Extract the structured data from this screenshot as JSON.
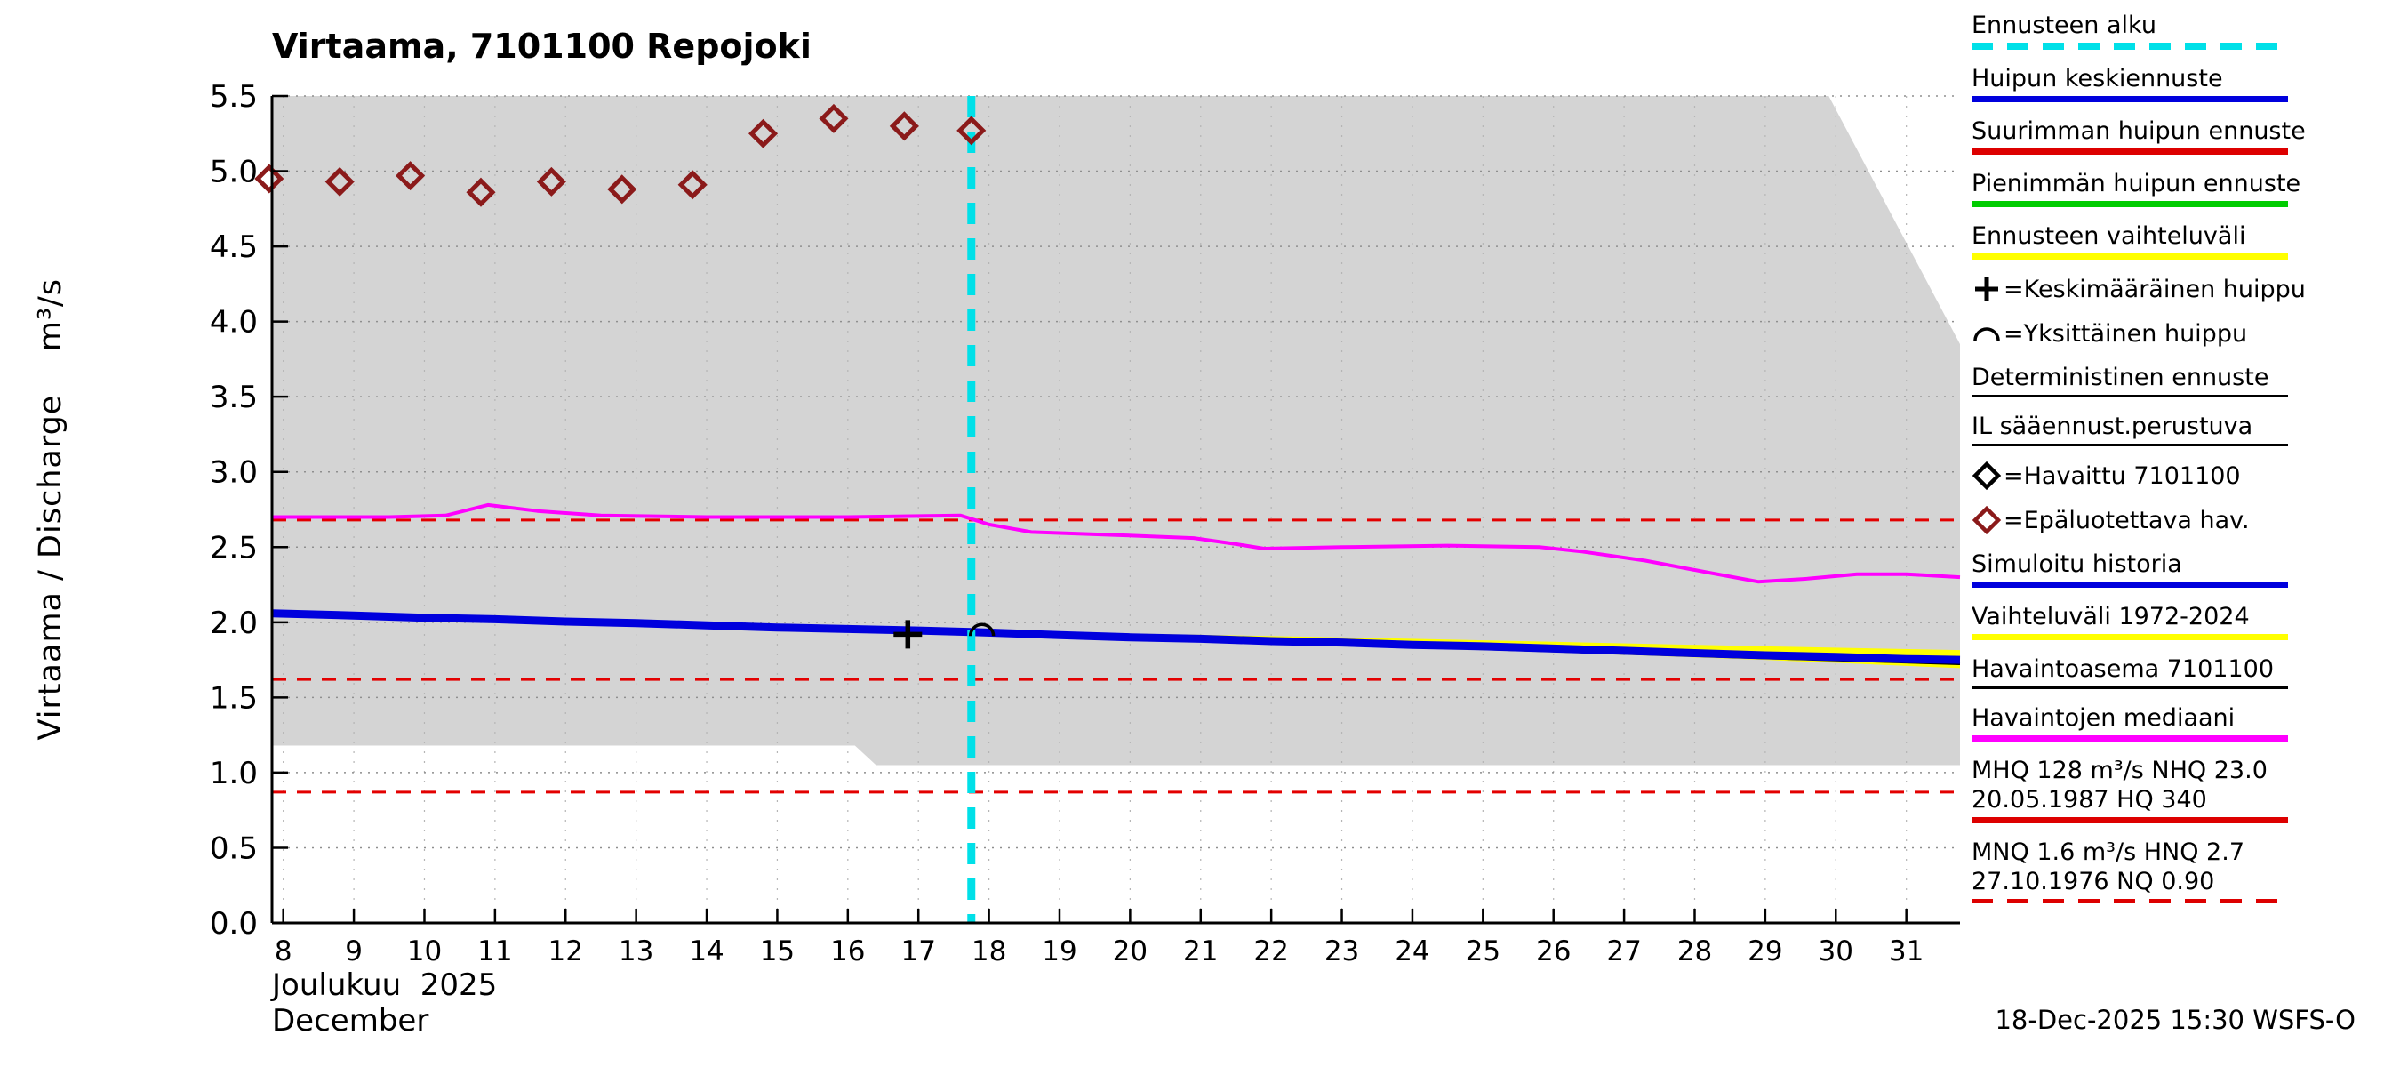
{
  "title": "Virtaama, 7101100 Repojoki",
  "footer": {
    "timestamp": "18-Dec-2025 15:30 WSFS-O"
  },
  "y_axis": {
    "label": "Virtaama / Discharge    m³/s",
    "tick_values": [
      0,
      0.5,
      1,
      1.5,
      2,
      2.5,
      3,
      3.5,
      4,
      4.5,
      5,
      5.5
    ],
    "tick_labels": [
      "0.0",
      "0.5",
      "1.0",
      "1.5",
      "2.0",
      "2.5",
      "3.0",
      "3.5",
      "4.0",
      "4.5",
      "5.0",
      "5.5"
    ]
  },
  "x_axis": {
    "tick_values": [
      8,
      9,
      10,
      11,
      12,
      13,
      14,
      15,
      16,
      17,
      18,
      19,
      20,
      21,
      22,
      23,
      24,
      25,
      26,
      27,
      28,
      29,
      30,
      31
    ],
    "tick_labels": [
      "8",
      "9",
      "10",
      "11",
      "12",
      "13",
      "14",
      "15",
      "16",
      "17",
      "18",
      "19",
      "20",
      "21",
      "22",
      "23",
      "24",
      "25",
      "26",
      "27",
      "28",
      "29",
      "30",
      "31"
    ],
    "month_fi": "Joulukuu  2025",
    "month_en": "December"
  },
  "colors": {
    "cyan": "#00E0E8",
    "blue": "#0000DD",
    "red": "#DD0000",
    "green": "#00CC00",
    "yellow": "#FFFF00",
    "magenta": "#FF00FF",
    "black": "#000000",
    "dark_red": "#8B1A1A",
    "range_gray": "#D4D4D4",
    "grid": "#8F8F8F",
    "grid_light": "#B5B5B5",
    "ref_red": "#E30000"
  },
  "chart_data": {
    "type": "line",
    "x_unit": "day of December 2025",
    "y_unit": "m³/s",
    "x_range": [
      7.84,
      31.76
    ],
    "y_range": [
      0,
      5.5
    ],
    "y_gridlines": [
      0.5,
      1.0,
      1.5,
      2.0,
      2.5,
      3.0,
      3.5,
      4.0,
      4.5,
      5.0,
      5.5
    ],
    "forecast_start_day": 17.75,
    "reference_levels": [
      2.68,
      1.62,
      0.87
    ],
    "historical_range": {
      "label": "Vaihteluväli 1972-2024",
      "upper": {
        "x": [
          7.84,
          29.9,
          31.76
        ],
        "y": [
          5.5,
          5.5,
          3.85
        ]
      },
      "lower": {
        "x": [
          7.84,
          16.1,
          16.4,
          31.76
        ],
        "y": [
          1.18,
          1.18,
          1.05,
          1.05
        ]
      }
    },
    "forecast_band": {
      "label": "Ennusteen vaihteluväli",
      "color_key": "yellow",
      "upper": {
        "x": [
          17.75,
          20,
          23,
          26,
          29,
          31.76
        ],
        "y": [
          1.95,
          1.925,
          1.9,
          1.87,
          1.84,
          1.815
        ]
      },
      "lower": {
        "x": [
          17.75,
          20,
          23,
          26,
          29,
          31.76
        ],
        "y": [
          1.92,
          1.885,
          1.845,
          1.8,
          1.75,
          1.695
        ]
      }
    },
    "series": [
      {
        "key": "median",
        "name": "Havaintojen mediaani",
        "color_key": "magenta",
        "width": 4,
        "x": [
          7.84,
          9.5,
          10.3,
          10.9,
          11.6,
          12.5,
          14,
          16,
          17.6,
          18,
          18.6,
          19.8,
          20.9,
          21.5,
          21.9,
          23,
          24.5,
          25.8,
          26.4,
          27.3,
          28.2,
          28.9,
          29.6,
          30.3,
          31,
          31.76
        ],
        "y": [
          2.7,
          2.7,
          2.71,
          2.78,
          2.74,
          2.71,
          2.7,
          2.7,
          2.71,
          2.65,
          2.6,
          2.58,
          2.56,
          2.52,
          2.49,
          2.5,
          2.51,
          2.5,
          2.47,
          2.41,
          2.33,
          2.27,
          2.29,
          2.32,
          2.32,
          2.3
        ]
      },
      {
        "key": "deterministic",
        "name": "Deterministinen ennuste",
        "color_key": "black",
        "width": 3.5,
        "x": [
          17.75,
          20,
          23,
          26,
          29,
          31.76
        ],
        "y": [
          1.93,
          1.895,
          1.855,
          1.81,
          1.765,
          1.725
        ]
      },
      {
        "key": "simulated-history",
        "name": "Simuloitu historia",
        "color_key": "blue",
        "width": 9,
        "x": [
          7.84,
          9,
          10,
          11,
          12,
          13,
          14,
          15,
          16,
          17,
          17.75
        ],
        "y": [
          2.06,
          2.045,
          2.03,
          2.02,
          2.005,
          1.995,
          1.98,
          1.965,
          1.955,
          1.945,
          1.935
        ]
      },
      {
        "key": "forecast-mean",
        "name": "Huipun keskiennuste",
        "color_key": "blue",
        "width": 9,
        "x": [
          17.75,
          19,
          20,
          21,
          22,
          23,
          24,
          25,
          26,
          27,
          28,
          29,
          30,
          31,
          31.76
        ],
        "y": [
          1.935,
          1.915,
          1.9,
          1.89,
          1.875,
          1.865,
          1.85,
          1.84,
          1.825,
          1.81,
          1.795,
          1.78,
          1.77,
          1.755,
          1.75
        ]
      }
    ],
    "observations_unreliable": {
      "label": "Epäluotettava hav.",
      "marker": "diamond",
      "color_key": "dark_red",
      "x": [
        7.8,
        8.8,
        9.8,
        10.8,
        11.8,
        12.8,
        13.8,
        14.8,
        15.8,
        16.8,
        17.75
      ],
      "y": [
        4.95,
        4.93,
        4.97,
        4.86,
        4.93,
        4.88,
        4.91,
        5.25,
        5.35,
        5.3,
        5.27
      ]
    },
    "markers": [
      {
        "type": "plus",
        "label": "Keskimääräinen huippu",
        "x": 16.85,
        "y": 1.92
      },
      {
        "type": "arc",
        "label": "Yksittäinen huippu",
        "x": 17.9,
        "y": 1.95
      }
    ]
  },
  "legend": {
    "items": [
      {
        "label": "Ennusteen alku",
        "swatch": "dashed",
        "color_key": "cyan"
      },
      {
        "label": "Huipun keskiennuste",
        "swatch": "solid",
        "color_key": "blue"
      },
      {
        "label": "Suurimman huipun ennuste",
        "swatch": "solid",
        "color_key": "red"
      },
      {
        "label": "Pienimmän huipun ennuste",
        "swatch": "solid",
        "color_key": "green"
      },
      {
        "label": "Ennusteen vaihteluväli",
        "swatch": "solid",
        "color_key": "yellow"
      },
      {
        "symbol": "plus",
        "symbol_color_key": "black",
        "label": "=Keskimääräinen huippu"
      },
      {
        "symbol": "arc",
        "symbol_color_key": "black",
        "label": "=Yksittäinen huippu"
      },
      {
        "label": "Deterministinen ennuste",
        "swatch": "thin",
        "color_key": "black"
      },
      {
        "label": "IL sääennust.perustuva",
        "swatch": "thin",
        "color_key": "black"
      },
      {
        "symbol": "diamond",
        "symbol_color_key": "black",
        "label": "=Havaittu 7101100"
      },
      {
        "symbol": "diamond",
        "symbol_color_key": "dark_red",
        "label": "=Epäluotettava hav."
      },
      {
        "label": "Simuloitu historia",
        "swatch": "solid",
        "color_key": "blue"
      },
      {
        "label": "Vaihteluväli 1972-2024",
        "swatch": "solid",
        "color_key": "yellow"
      },
      {
        "label": "Havaintoasema 7101100",
        "swatch": "thin",
        "color_key": "black"
      },
      {
        "label": "Havaintojen mediaani",
        "swatch": "solid",
        "color_key": "magenta"
      },
      {
        "label": "MHQ  128 m³/s NHQ 23.0",
        "label2": "20.05.1987 HQ  340",
        "swatch": "solid",
        "color_key": "red"
      },
      {
        "label": "MNQ  1.6 m³/s HNQ  2.7",
        "label2": "27.10.1976 NQ 0.90",
        "swatch": "dashed-thin",
        "color_key": "red"
      }
    ]
  }
}
